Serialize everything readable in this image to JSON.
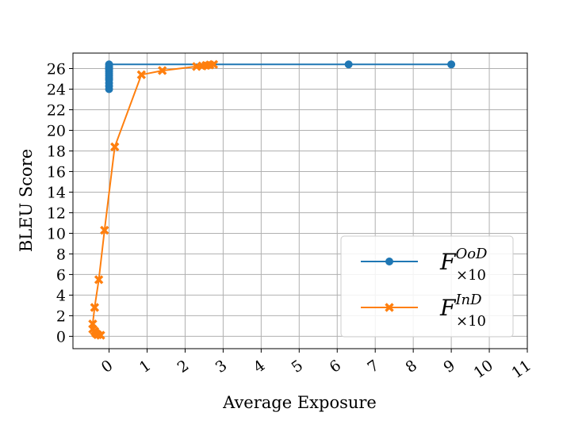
{
  "chart_data": {
    "type": "line",
    "title": "",
    "xlabel": "Average Exposure",
    "ylabel": "BLEU Score",
    "xlim": [
      -0.95,
      11
    ],
    "ylim": [
      -1.2,
      27.5
    ],
    "xticks": [
      0,
      1,
      2,
      3,
      4,
      5,
      6,
      7,
      8,
      9,
      10,
      11
    ],
    "yticks": [
      0,
      2,
      4,
      6,
      8,
      10,
      12,
      14,
      16,
      18,
      20,
      22,
      24,
      26
    ],
    "grid": true,
    "legend_position": "lower right",
    "series": [
      {
        "name": "F ×10 OoD",
        "legend_base": "F",
        "legend_sub": "×10",
        "legend_sup": "OoD",
        "color": "#1f77b4",
        "marker": "circle",
        "x": [
          0,
          0,
          0,
          0,
          0,
          0,
          0,
          0,
          0,
          0,
          0,
          0,
          0,
          6.3,
          9.0
        ],
        "y": [
          24.0,
          24.3,
          24.6,
          24.9,
          25.1,
          25.3,
          25.5,
          25.7,
          25.9,
          26.0,
          26.1,
          26.2,
          26.4,
          26.4,
          26.4
        ]
      },
      {
        "name": "F ×10 InD",
        "legend_base": "F",
        "legend_sub": "×10",
        "legend_sup": "InD",
        "color": "#ff7f0e",
        "marker": "x",
        "x": [
          -0.22,
          -0.3,
          -0.35,
          -0.38,
          -0.43,
          -0.43,
          -0.38,
          -0.27,
          -0.12,
          0.15,
          0.85,
          1.4,
          2.3,
          2.45,
          2.55,
          2.65,
          2.75
        ],
        "y": [
          0.1,
          0.15,
          0.3,
          0.5,
          0.7,
          1.2,
          2.8,
          5.5,
          10.3,
          18.4,
          25.4,
          25.8,
          26.2,
          26.25,
          26.3,
          26.35,
          26.4
        ]
      }
    ]
  }
}
